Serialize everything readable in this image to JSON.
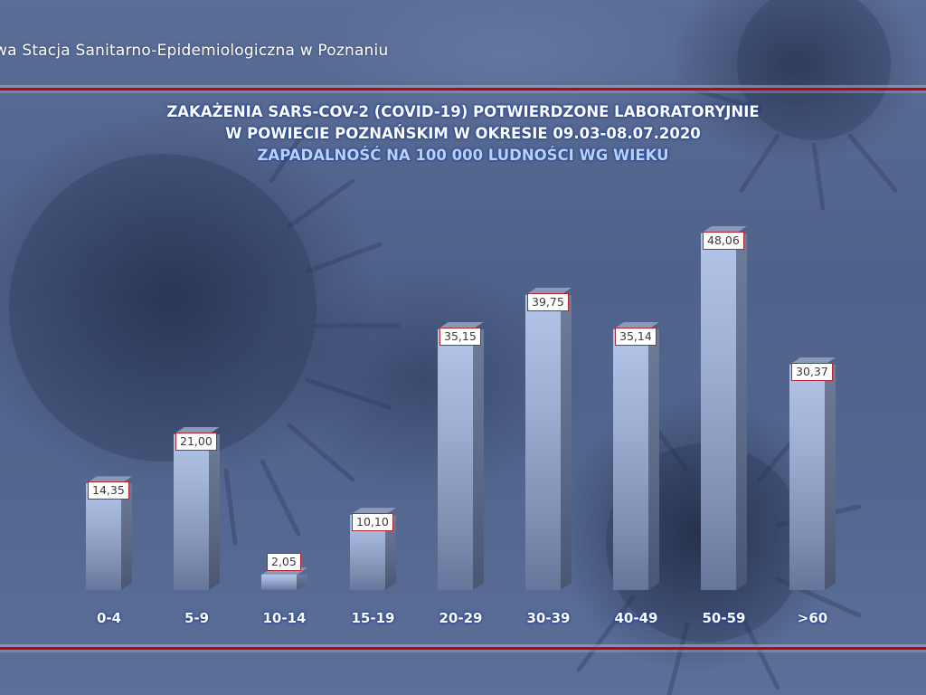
{
  "header": {
    "organization": "wa Stacja Sanitarno-Epidemiologiczna w Poznaniu"
  },
  "colors": {
    "background": "#4e6189",
    "rule_red": "#c4000b",
    "bar_front_top": "#b3c5e8",
    "bar_front_bottom": "#66769a",
    "label_border": "#b2242e",
    "title_text": "#ffffff",
    "subtitle_text": "#b7d2f5"
  },
  "chart_data": {
    "type": "bar",
    "title": "ZAKAŻENIA SARS-COV-2 (COVID-19) POTWIERDZONE LABORATORYJNIE",
    "title_line2": "W POWIECIE POZNAŃSKIM W OKRESIE 09.03-08.07.2020",
    "subtitle": "ZAPADALNOŚĆ NA 100 000 LUDNOŚCI WG WIEKU",
    "xlabel": "",
    "ylabel": "",
    "categories": [
      "0-4",
      "5-9",
      "10-14",
      "15-19",
      "20-29",
      "30-39",
      "40-49",
      "50-59",
      ">60"
    ],
    "values": [
      14.35,
      21.0,
      2.05,
      10.1,
      35.15,
      39.75,
      35.14,
      48.06,
      30.37
    ],
    "value_labels": [
      "14,35",
      "21,00",
      "2,05",
      "10,10",
      "35,15",
      "39,75",
      "35,14",
      "48,06",
      "30,37"
    ],
    "ylim": [
      0,
      50
    ],
    "grid": false,
    "legend": "none",
    "style": "3d-column"
  }
}
